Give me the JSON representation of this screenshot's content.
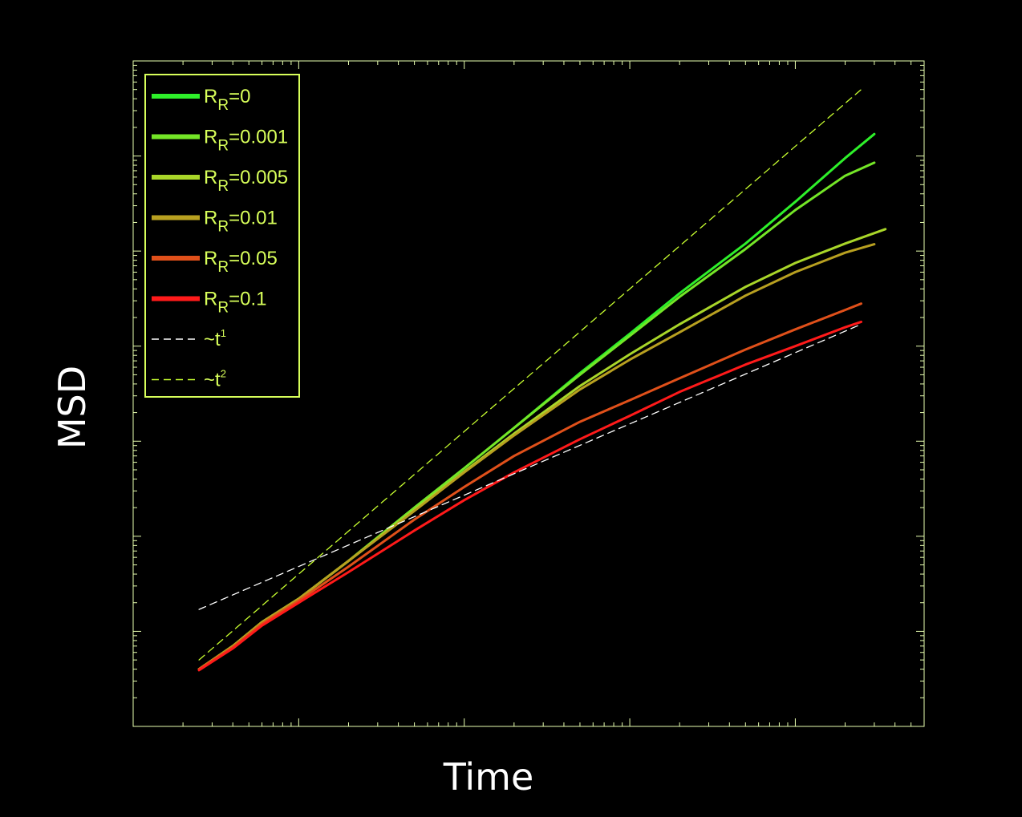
{
  "chart_data": {
    "type": "line",
    "xlabel": "Time",
    "ylabel": "MSD",
    "scale": {
      "x": "log",
      "y": "log"
    },
    "xlim": [
      1,
      60000
    ],
    "ylim": [
      1,
      10000000.0
    ],
    "grid": false,
    "legend": {
      "placement": "top-left",
      "entries": [
        {
          "name": "R_R=0",
          "main": "R",
          "sub": "R",
          "rest": "=0",
          "color": "#2ef02a",
          "style": "solid"
        },
        {
          "name": "R_R=0.001",
          "main": "R",
          "sub": "R",
          "rest": "=0.001",
          "color": "#74e627",
          "style": "solid"
        },
        {
          "name": "R_R=0.005",
          "main": "R",
          "sub": "R",
          "rest": "=0.005",
          "color": "#a9d629",
          "style": "solid"
        },
        {
          "name": "R_R=0.01",
          "main": "R",
          "sub": "R",
          "rest": "=0.01",
          "color": "#b8a020",
          "style": "solid"
        },
        {
          "name": "R_R=0.05",
          "main": "R",
          "sub": "R",
          "rest": "=0.05",
          "color": "#e0501a",
          "style": "solid"
        },
        {
          "name": "R_R=0.1",
          "main": "R",
          "sub": "R",
          "rest": "=0.1",
          "color": "#ff1a1a",
          "style": "solid"
        },
        {
          "name": "~t^1",
          "main": "~t",
          "sup": "1",
          "color": "#ffffff",
          "style": "dashed"
        },
        {
          "name": "~t^2",
          "main": "~t",
          "sup": "2",
          "color": "#c8ff30",
          "style": "dashed"
        }
      ]
    },
    "series": [
      {
        "name": "R_R=0",
        "color": "#2ef02a",
        "x": [
          2.5,
          4,
          6,
          10,
          20,
          50,
          100,
          200,
          500,
          1000,
          2000,
          5000,
          10000,
          20000,
          30000
        ],
        "y": [
          4,
          7,
          12.5,
          22,
          55,
          200,
          520,
          1380,
          5200,
          13500,
          36000,
          120000,
          330000,
          950000,
          1700000
        ]
      },
      {
        "name": "R_R=0.001",
        "color": "#74e627",
        "x": [
          2.5,
          4,
          6,
          10,
          20,
          50,
          100,
          200,
          500,
          1000,
          2000,
          5000,
          10000,
          20000,
          30000
        ],
        "y": [
          4,
          7,
          12.5,
          22,
          55,
          200,
          520,
          1380,
          5000,
          12800,
          33000,
          105000,
          270000,
          620000,
          850000
        ]
      },
      {
        "name": "R_R=0.005",
        "color": "#a9d629",
        "x": [
          2.5,
          4,
          6,
          10,
          20,
          50,
          100,
          200,
          500,
          1000,
          2000,
          5000,
          10000,
          20000,
          35000
        ],
        "y": [
          4,
          7,
          12.5,
          22,
          55,
          190,
          480,
          1200,
          3800,
          8200,
          17000,
          42000,
          75000,
          120000,
          170000
        ]
      },
      {
        "name": "R_R=0.01",
        "color": "#b8a020",
        "x": [
          2.5,
          4,
          6,
          10,
          20,
          50,
          100,
          200,
          500,
          1000,
          2000,
          5000,
          10000,
          20000,
          30000
        ],
        "y": [
          4,
          7,
          12.5,
          22,
          55,
          185,
          470,
          1150,
          3500,
          7200,
          14000,
          34000,
          60000,
          96000,
          118000
        ]
      },
      {
        "name": "R_R=0.05",
        "color": "#e0501a",
        "x": [
          2.5,
          4,
          6,
          10,
          20,
          50,
          100,
          200,
          500,
          1000,
          2000,
          5000,
          10000,
          20000,
          25000
        ],
        "y": [
          4,
          6.8,
          12,
          21,
          48,
          150,
          330,
          700,
          1600,
          2700,
          4600,
          9200,
          15000,
          24000,
          28000
        ]
      },
      {
        "name": "R_R=0.1",
        "color": "#ff1a1a",
        "x": [
          2.5,
          4,
          6,
          10,
          20,
          50,
          100,
          200,
          500,
          1000,
          2000,
          5000,
          10000,
          20000,
          25000
        ],
        "y": [
          3.9,
          6.6,
          11.5,
          20,
          42,
          115,
          240,
          470,
          1050,
          1850,
          3300,
          6400,
          10000,
          15800,
          18000
        ]
      },
      {
        "name": "~t^1",
        "color": "#ffffff",
        "style": "dashed",
        "x": [
          2.5,
          25000
        ],
        "y": [
          17,
          17000
        ]
      },
      {
        "name": "~t^2",
        "color": "#c8ff30",
        "style": "dashed",
        "x": [
          2.5,
          25000
        ],
        "y": [
          5,
          5000000
        ]
      }
    ]
  }
}
